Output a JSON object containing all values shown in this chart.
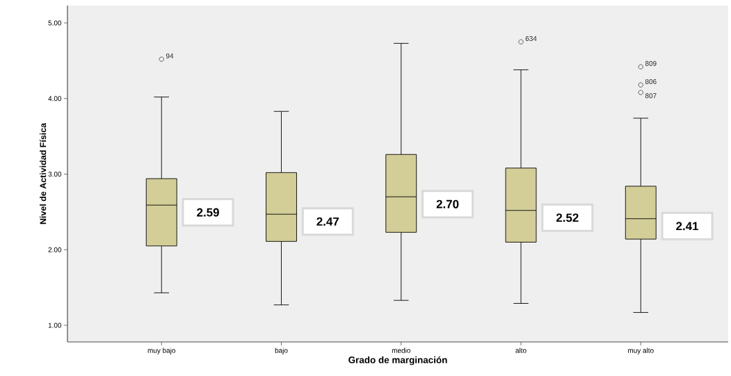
{
  "chart_data": {
    "type": "box",
    "xlabel": "Grado de marginación",
    "ylabel": "Nivel de Actividad Física",
    "categories": [
      "muy bajo",
      "bajo",
      "medio",
      "alto",
      "muy alto"
    ],
    "color": "#d3ce98",
    "boxes": [
      {
        "low": 1.43,
        "q1": 2.05,
        "median": 2.59,
        "q3": 2.94,
        "high": 4.02,
        "outliers": [
          4.52
        ]
      },
      {
        "low": 1.27,
        "q1": 2.11,
        "median": 2.47,
        "q3": 3.02,
        "high": 3.83
      },
      {
        "low": 1.33,
        "q1": 2.23,
        "median": 2.7,
        "q3": 3.26,
        "high": 4.73
      },
      {
        "low": 1.29,
        "q1": 2.1,
        "median": 2.52,
        "q3": 3.08,
        "high": 4.38,
        "outliers": [
          4.75
        ]
      },
      {
        "low": 1.17,
        "q1": 2.14,
        "median": 2.41,
        "q3": 2.84,
        "high": 3.74,
        "outliers": [
          4.42,
          4.18,
          4.08
        ]
      }
    ],
    "ylim": [
      0.78,
      5.23
    ],
    "yticks": [
      {
        "value": 1,
        "label": "1.00"
      },
      {
        "value": 2,
        "label": "2.00"
      },
      {
        "value": 3,
        "label": "3.00"
      },
      {
        "value": 4,
        "label": "4.00"
      },
      {
        "value": 5,
        "label": "5.00"
      }
    ],
    "annotations": [
      "2.59",
      "2.47",
      "2.70",
      "2.52",
      "2.41",
      "94",
      "634",
      "809",
      "806",
      "807"
    ]
  }
}
